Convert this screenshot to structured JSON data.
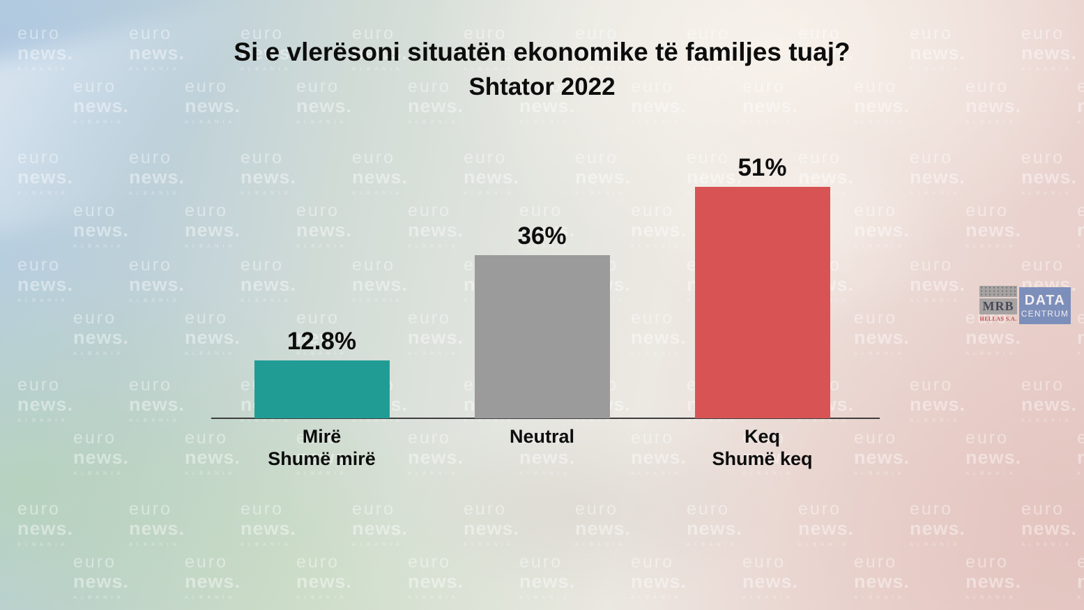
{
  "title": "Si e vlerësoni situatën ekonomike të familjes tuaj?",
  "subtitle": "Shtator 2022",
  "watermark": {
    "line1": "euro",
    "line2": "news.",
    "line3": "ALBANIA"
  },
  "source_logos": {
    "mrb": {
      "name": "MRB",
      "sub": "HELLAS S.A."
    },
    "datacentrum": {
      "line1": "DATA",
      "line2": "CENTRUM"
    }
  },
  "chart_data": {
    "type": "bar",
    "title": "Si e vlerësoni situatën ekonomike të familjes tuaj? — Shtator 2022",
    "categories": [
      [
        "Mirë",
        "Shumë mirë"
      ],
      [
        "Neutral"
      ],
      [
        "Keq",
        "Shumë keq"
      ]
    ],
    "values": [
      12.8,
      36,
      51
    ],
    "value_labels": [
      "12.8%",
      "36%",
      "51%"
    ],
    "bar_colors": [
      "#219c95",
      "#9b9b9b",
      "#d85454"
    ],
    "xlabel": "",
    "ylabel": "",
    "ylim": [
      0,
      55
    ],
    "grid": false,
    "legend": false,
    "axis_color": "#3d3d3d"
  }
}
